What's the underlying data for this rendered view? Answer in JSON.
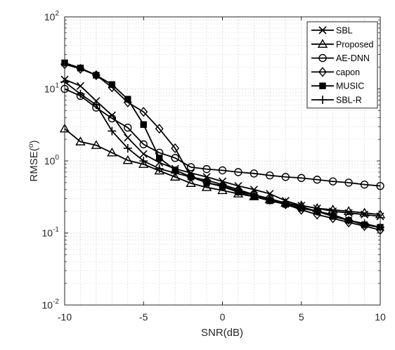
{
  "chart_data": {
    "type": "line",
    "xlabel": "SNR(dB)",
    "ylabel_base": "RMSE(",
    "ylabel_sup": "o",
    "ylabel_end": ")",
    "y_scale": "log",
    "xlim": [
      -10,
      10
    ],
    "ylim": [
      0.01,
      100
    ],
    "x_ticks": [
      -10,
      -5,
      0,
      5,
      10
    ],
    "x_tick_labels": [
      "-10",
      "-5",
      "0",
      "5",
      "10"
    ],
    "y_ticks": [
      0.01,
      0.1,
      1,
      10,
      100
    ],
    "y_tick_labels": [
      {
        "base": "10",
        "exp": "-2"
      },
      {
        "base": "10",
        "exp": "-1"
      },
      {
        "base": "10",
        "exp": "0"
      },
      {
        "base": "10",
        "exp": "1"
      },
      {
        "base": "10",
        "exp": "2"
      }
    ],
    "grid": true,
    "legend_position": "top-right",
    "x": [
      -10,
      -9,
      -8,
      -7,
      -6,
      -5,
      -4,
      -3,
      -2,
      -1,
      0,
      1,
      2,
      3,
      4,
      5,
      6,
      7,
      8,
      9,
      10
    ],
    "series": [
      {
        "name": "SBL",
        "marker": "x",
        "values": [
          13.5,
          11,
          6.8,
          4.3,
          2.1,
          1.25,
          0.95,
          0.78,
          0.68,
          0.6,
          0.52,
          0.45,
          0.4,
          0.35,
          0.28,
          0.24,
          0.22,
          0.2,
          0.19,
          0.18,
          0.17
        ]
      },
      {
        "name": "Proposed",
        "marker": "triangle",
        "values": [
          2.8,
          1.85,
          1.65,
          1.3,
          1.02,
          0.9,
          0.73,
          0.6,
          0.49,
          0.43,
          0.39,
          0.35,
          0.32,
          0.29,
          0.26,
          0.24,
          0.22,
          0.21,
          0.2,
          0.19,
          0.18
        ]
      },
      {
        "name": "AE-DNN",
        "marker": "circle",
        "values": [
          10,
          8,
          5.5,
          3.9,
          2.9,
          1.7,
          1.3,
          1.1,
          0.82,
          0.77,
          0.74,
          0.7,
          0.67,
          0.63,
          0.6,
          0.58,
          0.55,
          0.52,
          0.5,
          0.47,
          0.45
        ]
      },
      {
        "name": "capon",
        "marker": "diamond",
        "values": [
          22,
          19,
          15.5,
          10.5,
          6.5,
          4.8,
          2.8,
          1.5,
          0.6,
          0.5,
          0.45,
          0.38,
          0.34,
          0.29,
          0.25,
          0.21,
          0.18,
          0.16,
          0.14,
          0.125,
          0.11
        ]
      },
      {
        "name": "MUSIC",
        "marker": "square",
        "values": [
          23,
          19.5,
          15.5,
          11.5,
          7.2,
          3.2,
          1.1,
          0.75,
          0.6,
          0.5,
          0.44,
          0.37,
          0.32,
          0.28,
          0.25,
          0.22,
          0.2,
          0.17,
          0.15,
          0.13,
          0.12
        ]
      },
      {
        "name": "SBL-R",
        "marker": "plus",
        "values": [
          12.5,
          8.5,
          6,
          2.6,
          1.5,
          1.0,
          0.78,
          0.68,
          0.6,
          0.54,
          0.47,
          0.4,
          0.34,
          0.3,
          0.26,
          0.23,
          0.2,
          0.18,
          0.15,
          0.135,
          0.12
        ]
      }
    ]
  }
}
